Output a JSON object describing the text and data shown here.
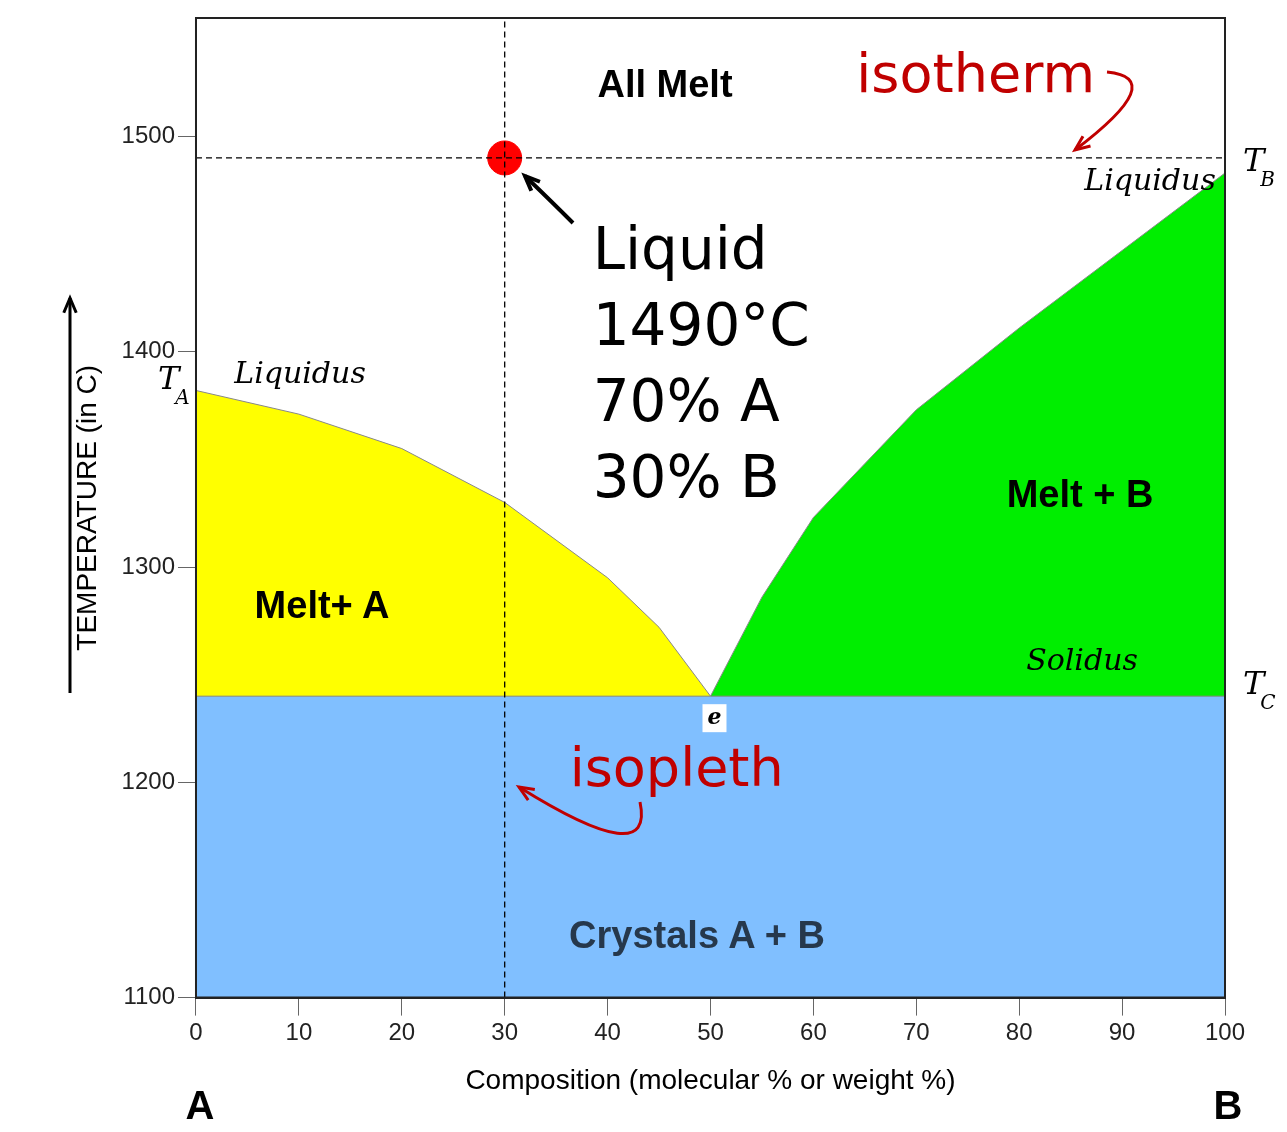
{
  "chart_data": {
    "type": "area",
    "xlabel": "Composition (molecular % or weight %)",
    "ylabel": "TEMPERATURE (in C)",
    "xlim": [
      0,
      100
    ],
    "xticks": [
      0,
      10,
      20,
      30,
      40,
      50,
      60,
      70,
      80,
      90,
      100
    ],
    "ylim": [
      1100,
      1555
    ],
    "yticks": [
      1100,
      1200,
      1300,
      1400,
      1500
    ],
    "grid": false,
    "legend": false,
    "series": [
      {
        "type": "scatter",
        "color": "#ff0000",
        "x": [
          30
        ],
        "values": [
          1490
        ],
        "marker": "circle"
      },
      {
        "color": "#80bfff",
        "x": [
          0,
          100
        ],
        "values": [
          1240,
          1240
        ]
      },
      {
        "color": "#ffff00",
        "x": [
          0,
          10,
          20,
          30,
          40,
          45,
          50
        ],
        "values": [
          1382,
          1371,
          1355,
          1330,
          1295,
          1272,
          1240
        ]
      },
      {
        "color": "#00ee00",
        "x": [
          50,
          55,
          60,
          70,
          80,
          90,
          100
        ],
        "values": [
          1240,
          1286,
          1323,
          1373,
          1411,
          1447,
          1483
        ]
      }
    ],
    "ref_lines": [
      {
        "axis": "y",
        "value": 1490,
        "label": "isotherm",
        "color": "#000000",
        "line_style": "dashed"
      },
      {
        "axis": "x",
        "value": 30,
        "label": "isopleth",
        "color": "#000000",
        "line_style": "dashed"
      }
    ],
    "annotations": [
      {
        "text": "Liquid\n1490°C\n70% A\n30% B",
        "x": 30,
        "y": 1490
      },
      {
        "text": "e",
        "x": 50,
        "y": 1240
      },
      {
        "text": "T$_{A}$",
        "x": 0,
        "y": 1382
      },
      {
        "text": "T$_{B}$",
        "x": 100,
        "y": 1483
      },
      {
        "text": "T$_{C}$",
        "x": 100,
        "y": 1240
      },
      "All Melt",
      "Melt+ A",
      "Melt + B",
      "Crystals A + B",
      "Liquidus",
      "Liquidus",
      "Solidus",
      "A",
      "B"
    ]
  }
}
